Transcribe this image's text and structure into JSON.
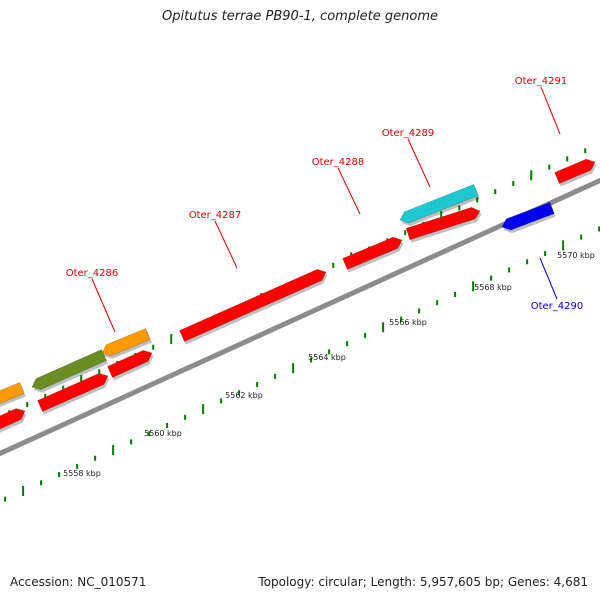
{
  "header": {
    "title": "Opitutus terrae PB90-1, complete genome"
  },
  "footer": {
    "accession": "Accession: NC_010571",
    "topology": "Topology: circular; Length: 5,957,605 bp; Genes: 4,681"
  },
  "colors": {
    "backbone": "#8c8c8c",
    "red": "#ff0000",
    "orange": "#ff9900",
    "olive": "#6b8e23",
    "cyan": "#1fc8d0",
    "blue": "#0000ee",
    "tick": "#007a00",
    "label_red": "#dd0000",
    "label_blue": "#0000cc"
  },
  "scale_labels": [
    "5558 kbp",
    "5560 kbp",
    "5562 kbp",
    "5564 kbp",
    "5566 kbp",
    "5568 kbp",
    "5570 kbp"
  ],
  "gene_labels": [
    {
      "text": "Oter_4286",
      "color": "red"
    },
    {
      "text": "Oter_4287",
      "color": "red"
    },
    {
      "text": "Oter_4288",
      "color": "red"
    },
    {
      "text": "Oter_4289",
      "color": "red"
    },
    {
      "text": "Oter_4290",
      "color": "blue"
    },
    {
      "text": "Oter_4291",
      "color": "red"
    }
  ]
}
